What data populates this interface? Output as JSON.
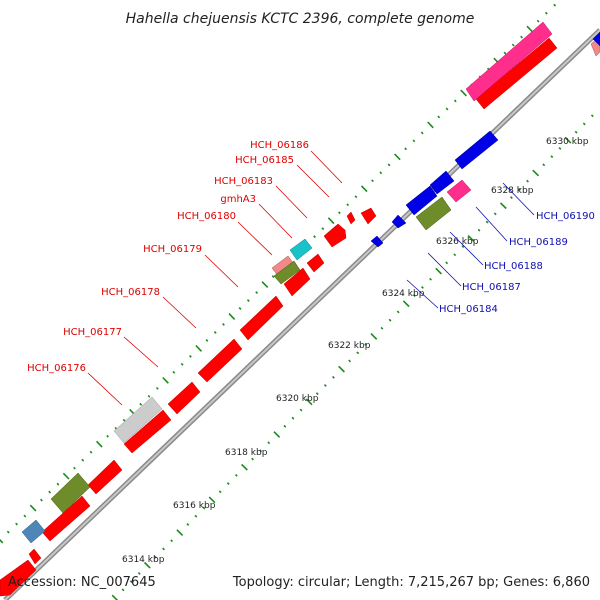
{
  "title": "Hahella chejuensis KCTC 2396, complete genome",
  "accession": "Accession: NC_007645",
  "topology": "Topology: circular; Length: 7,215,267 bp; Genes: 6,860",
  "colors": {
    "red": "#ff0000",
    "blue": "#0000e6",
    "pink": "#ff2d8c",
    "lightpink": "#f08a8a",
    "olive": "#6e8c2a",
    "teal": "#18c2c8",
    "grey": "#cccccc",
    "steelblue": "#4f86b8",
    "axis": "#8a8a8a",
    "tick": "#1a8a1a",
    "label_red": "#e00000",
    "label_blue": "#1010b0"
  },
  "scale": [
    "6314 kbp",
    "6316 kbp",
    "6318 kbp",
    "6320 kbp",
    "6322 kbp",
    "6324 kbp",
    "6326 kbp",
    "6328 kbp",
    "6330 kbp"
  ],
  "genes_forward": [
    "HCH_06176",
    "HCH_06177",
    "HCH_06178",
    "HCH_06179",
    "HCH_06180",
    "gmhA3",
    "HCH_06183",
    "HCH_06185",
    "HCH_06186"
  ],
  "genes_reverse": [
    "HCH_06184",
    "HCH_06187",
    "HCH_06188",
    "HCH_06189",
    "HCH_06190"
  ]
}
